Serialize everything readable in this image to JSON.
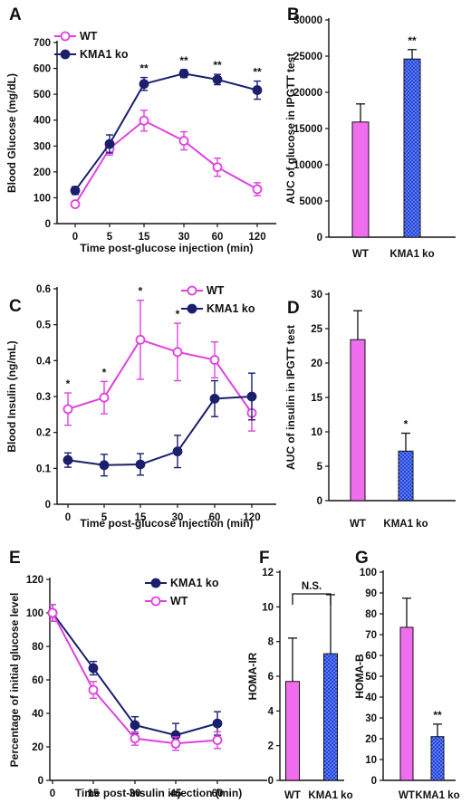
{
  "colors": {
    "wt": "#e040e0",
    "ko": "#1a1f6e",
    "bar_wt": "#f06df0",
    "bar_ko": "#2244dd"
  },
  "chart_data": [
    {
      "panel": "A",
      "type": "line",
      "xlabel": "Time post-glucose injection (min)",
      "ylabel": "Blood Glucose (mg/dL)",
      "x": [
        "0",
        "5",
        "15",
        "30",
        "60",
        "120"
      ],
      "yticks": [
        0,
        100,
        200,
        300,
        400,
        500,
        600,
        700
      ],
      "ylim": [
        0,
        700
      ],
      "series": [
        {
          "name": "WT",
          "values": [
            75,
            290,
            398,
            320,
            218,
            133
          ],
          "errors": [
            10,
            25,
            40,
            35,
            35,
            25
          ]
        },
        {
          "name": "KMA1 ko",
          "values": [
            128,
            308,
            540,
            580,
            557,
            516
          ],
          "errors": [
            15,
            35,
            25,
            15,
            20,
            35
          ]
        }
      ],
      "annotations": [
        "",
        "",
        "**",
        "**",
        "**",
        "**"
      ],
      "legend_position": "top-left"
    },
    {
      "panel": "B",
      "type": "bar",
      "ylabel": "AUC of glucose in IPGTT test",
      "categories": [
        "WT",
        "KMA1 ko"
      ],
      "values": [
        15900,
        24600
      ],
      "errors": [
        2500,
        1300
      ],
      "yticks": [
        0,
        5000,
        10000,
        15000,
        20000,
        25000,
        30000
      ],
      "ylim": [
        0,
        30000
      ],
      "annotations": [
        "",
        "**"
      ]
    },
    {
      "panel": "C",
      "type": "line",
      "xlabel": "Time post-glucose injection (min)",
      "ylabel": "Blood Insulin (ng/mL)",
      "x": [
        "0",
        "5",
        "15",
        "30",
        "60",
        "120"
      ],
      "yticks": [
        0,
        0.1,
        0.2,
        0.3,
        0.4,
        0.5,
        0.6
      ],
      "ylim": [
        0,
        0.6
      ],
      "ytick_labels": [
        "0",
        "0.1",
        "0.2",
        "0.3",
        "0.4",
        "0.5",
        "0.6"
      ],
      "series": [
        {
          "name": "WT",
          "values": [
            0.265,
            0.297,
            0.458,
            0.424,
            0.402,
            0.254
          ],
          "errors": [
            0.045,
            0.045,
            0.11,
            0.08,
            0.05,
            0.05
          ]
        },
        {
          "name": "KMA1 ko",
          "values": [
            0.123,
            0.109,
            0.111,
            0.147,
            0.294,
            0.3
          ],
          "errors": [
            0.02,
            0.03,
            0.03,
            0.045,
            0.05,
            0.065
          ]
        }
      ],
      "annotations": [
        "*",
        "*",
        "*",
        "*",
        "",
        ""
      ],
      "legend_position": "top-right"
    },
    {
      "panel": "D",
      "type": "bar",
      "ylabel": "AUC of insulin in IPGTT test",
      "categories": [
        "WT",
        "KMA1 ko"
      ],
      "values": [
        23.4,
        7.2
      ],
      "errors": [
        4.2,
        2.6
      ],
      "yticks": [
        0,
        5,
        10,
        15,
        20,
        25,
        30
      ],
      "ylim": [
        0,
        30
      ],
      "annotations": [
        "",
        "*"
      ]
    },
    {
      "panel": "E",
      "type": "line",
      "xlabel": "Time post-insulin injection (min)",
      "ylabel": "Percentage of initial glucose level",
      "x": [
        "0",
        "15",
        "30",
        "45",
        "60"
      ],
      "yticks": [
        0,
        20,
        40,
        60,
        80,
        100,
        120
      ],
      "ylim": [
        0,
        120
      ],
      "series": [
        {
          "name": "KMA1 ko",
          "values": [
            100,
            67,
            33,
            27,
            34
          ],
          "errors": [
            5,
            4,
            5,
            7,
            7
          ]
        },
        {
          "name": "WT",
          "values": [
            100,
            54,
            25,
            22,
            24
          ],
          "errors": [
            5,
            5,
            4,
            4,
            5
          ]
        }
      ],
      "legend_position": "top-right"
    },
    {
      "panel": "F",
      "type": "bar",
      "ylabel": "HOMA-IR",
      "categories": [
        "WT",
        "KMA1 ko"
      ],
      "values": [
        5.7,
        7.3
      ],
      "errors": [
        2.5,
        3.4
      ],
      "yticks": [
        0,
        2,
        4,
        6,
        8,
        10,
        12
      ],
      "ylim": [
        0,
        12
      ],
      "bracket_label": "N.S."
    },
    {
      "panel": "G",
      "type": "bar",
      "ylabel": "HOMA-B",
      "categories": [
        "WT",
        "KMA1 ko"
      ],
      "values": [
        73.5,
        21
      ],
      "errors": [
        14,
        6
      ],
      "yticks": [
        0,
        10,
        20,
        30,
        40,
        50,
        60,
        70,
        80,
        90,
        100
      ],
      "ylim": [
        0,
        100
      ],
      "annotations": [
        "",
        "**"
      ]
    }
  ]
}
